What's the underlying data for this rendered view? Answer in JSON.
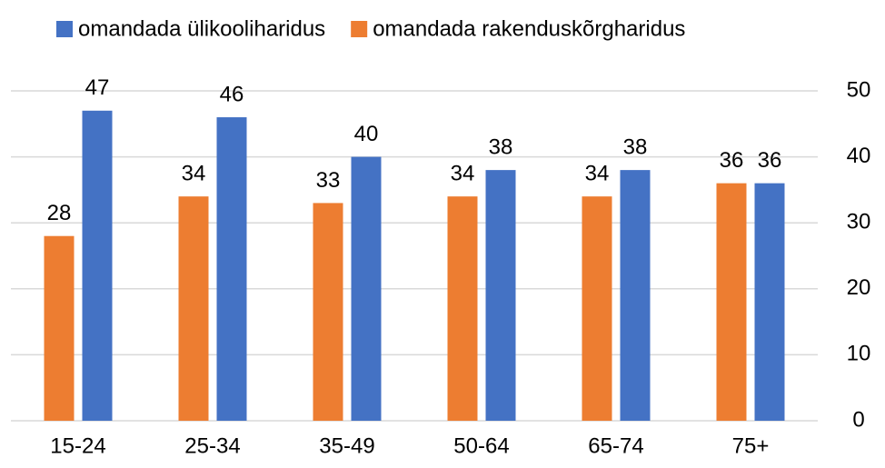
{
  "chart_data": {
    "type": "bar",
    "categories": [
      "15-24",
      "25-34",
      "35-49",
      "50-64",
      "65-74",
      "75+"
    ],
    "series": [
      {
        "name": "omandada rakenduskõrgharidus",
        "color": "#ed7d31",
        "values": [
          28,
          34,
          33,
          34,
          34,
          36
        ]
      },
      {
        "name": "omandada ülikooliharidus",
        "color": "#4472c4",
        "values": [
          47,
          46,
          40,
          38,
          38,
          36
        ]
      }
    ],
    "ylim": [
      0,
      50
    ],
    "yticks": [
      0,
      10,
      20,
      30,
      40,
      50
    ],
    "grid": true,
    "y_axis_side": "right",
    "legend": "top"
  }
}
